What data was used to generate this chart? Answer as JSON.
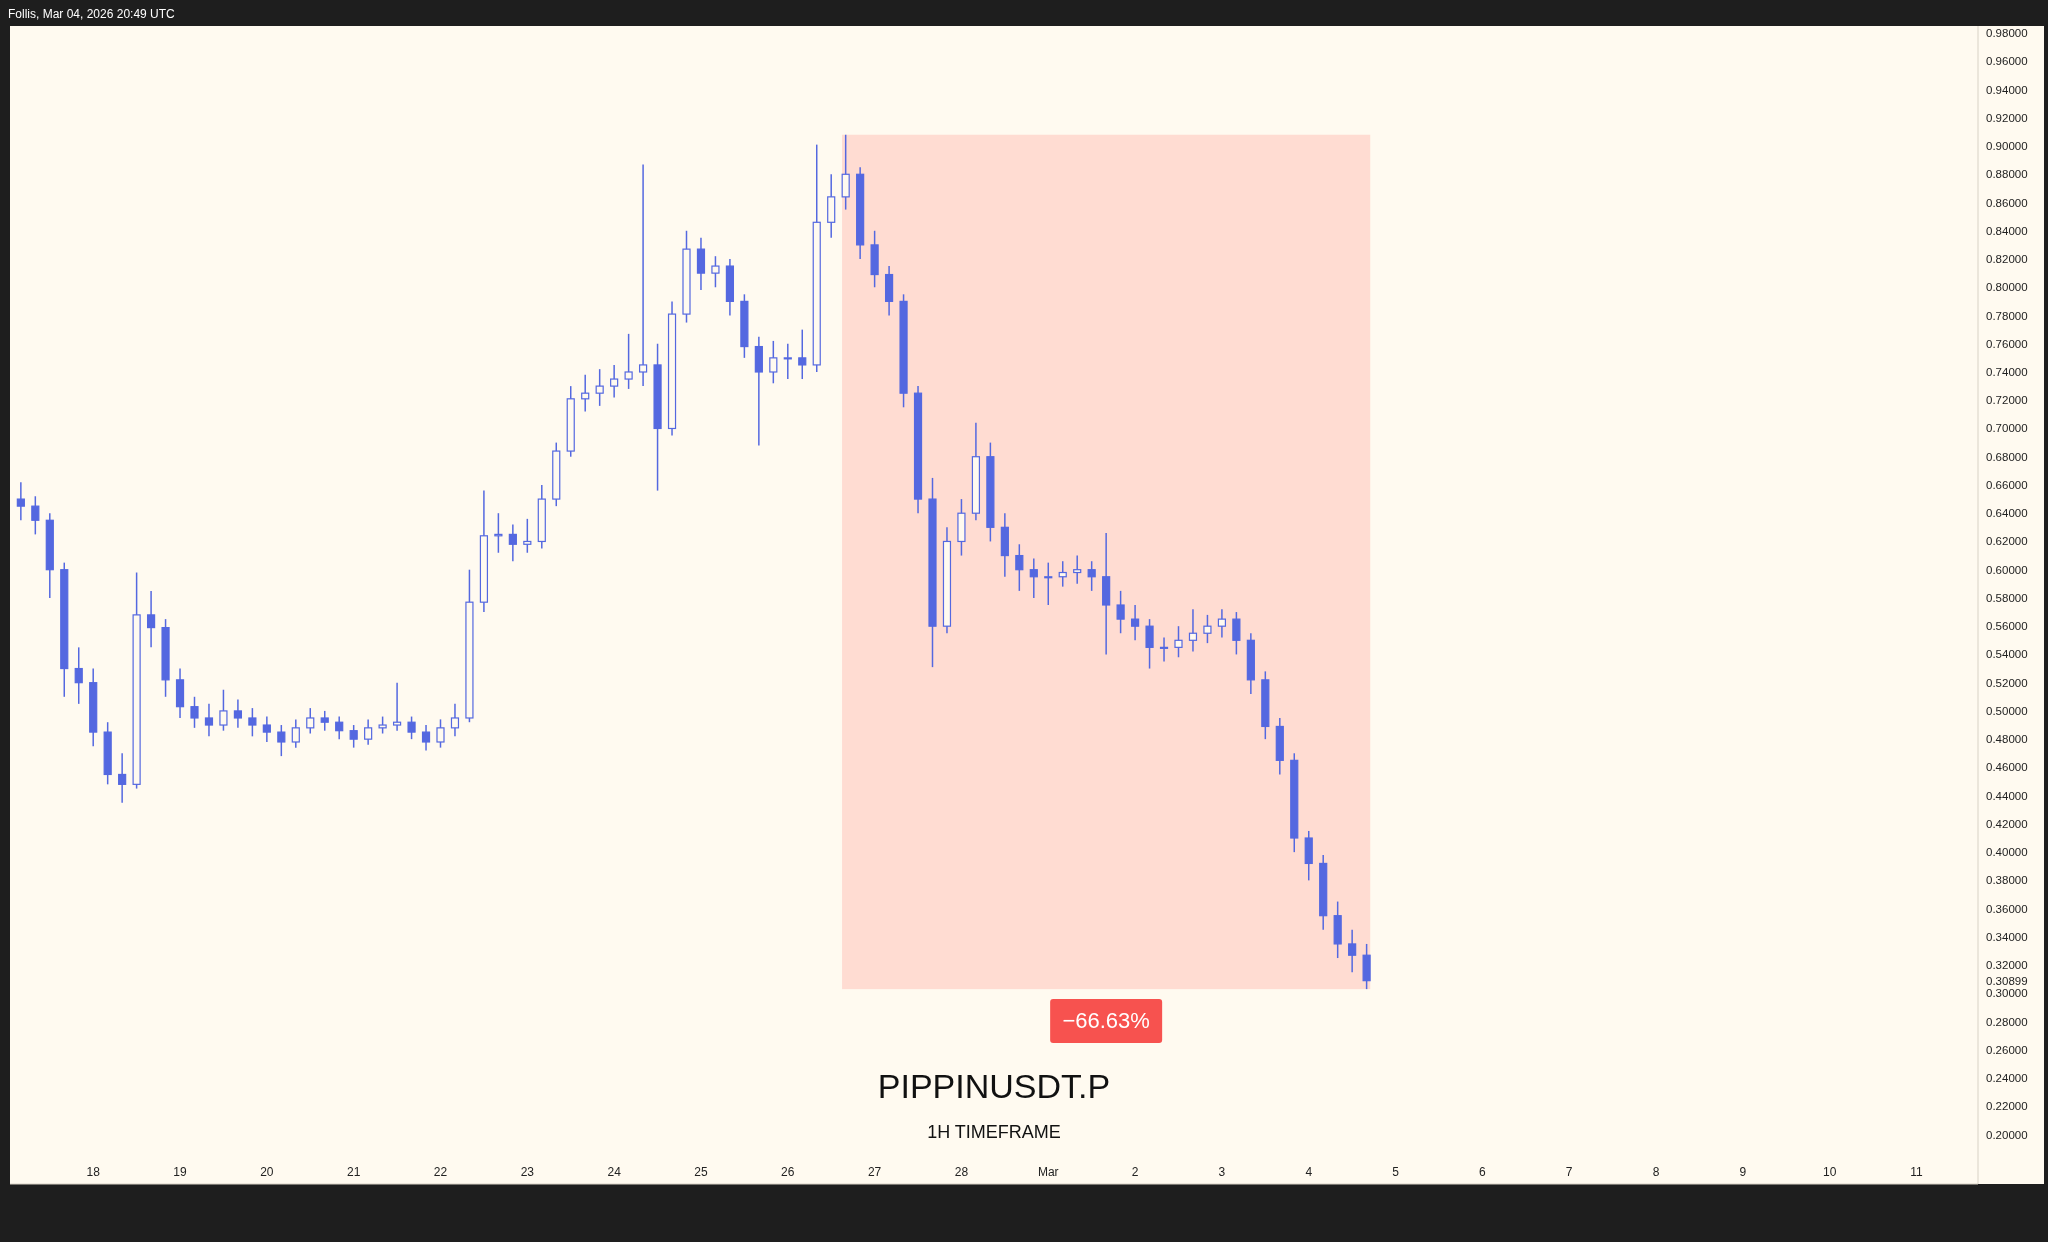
{
  "chart_data": {
    "type": "candlestick",
    "title": "PIPPINUSDT.P",
    "subtitle": "1H TIMEFRAME",
    "annotations": [
      "Follis, Mar 04, 2026 20:49 UTC"
    ],
    "xlim": [
      "2026-02-17T01:00",
      "2026-03-11T17:00"
    ],
    "xticks": [
      {
        "value": "2026-02-18",
        "label": "18"
      },
      {
        "value": "2026-02-19",
        "label": "19"
      },
      {
        "value": "2026-02-20",
        "label": "20"
      },
      {
        "value": "2026-02-21",
        "label": "21"
      },
      {
        "value": "2026-02-22",
        "label": "22"
      },
      {
        "value": "2026-02-23",
        "label": "23"
      },
      {
        "value": "2026-02-24",
        "label": "24"
      },
      {
        "value": "2026-02-25",
        "label": "25"
      },
      {
        "value": "2026-02-26",
        "label": "26"
      },
      {
        "value": "2026-02-27",
        "label": "27"
      },
      {
        "value": "2026-02-28",
        "label": "28"
      },
      {
        "value": "2026-03-01",
        "label": "Mar"
      },
      {
        "value": "2026-03-02",
        "label": "2"
      },
      {
        "value": "2026-03-03",
        "label": "3"
      },
      {
        "value": "2026-03-04",
        "label": "4"
      },
      {
        "value": "2026-03-05",
        "label": "5"
      },
      {
        "value": "2026-03-06",
        "label": "6"
      },
      {
        "value": "2026-03-07",
        "label": "7"
      },
      {
        "value": "2026-03-08",
        "label": "8"
      },
      {
        "value": "2026-03-09",
        "label": "9"
      },
      {
        "value": "2026-03-10",
        "label": "10"
      },
      {
        "value": "2026-03-11",
        "label": "11"
      }
    ],
    "ylim": [
      0.165,
      0.985
    ],
    "yticks": [
      {
        "value": 0.2,
        "label": "0.20000"
      },
      {
        "value": 0.22,
        "label": "0.22000"
      },
      {
        "value": 0.24,
        "label": "0.24000"
      },
      {
        "value": 0.26,
        "label": "0.26000"
      },
      {
        "value": 0.28,
        "label": "0.28000"
      },
      {
        "value": 0.3,
        "label": "0.30000"
      },
      {
        "value": 0.30899,
        "label": "0.30899"
      },
      {
        "value": 0.32,
        "label": "0.32000"
      },
      {
        "value": 0.34,
        "label": "0.34000"
      },
      {
        "value": 0.36,
        "label": "0.36000"
      },
      {
        "value": 0.38,
        "label": "0.38000"
      },
      {
        "value": 0.4,
        "label": "0.40000"
      },
      {
        "value": 0.42,
        "label": "0.42000"
      },
      {
        "value": 0.44,
        "label": "0.44000"
      },
      {
        "value": 0.46,
        "label": "0.46000"
      },
      {
        "value": 0.48,
        "label": "0.48000"
      },
      {
        "value": 0.5,
        "label": "0.50000"
      },
      {
        "value": 0.52,
        "label": "0.52000"
      },
      {
        "value": 0.54,
        "label": "0.54000"
      },
      {
        "value": 0.56,
        "label": "0.56000"
      },
      {
        "value": 0.58,
        "label": "0.58000"
      },
      {
        "value": 0.6,
        "label": "0.60000"
      },
      {
        "value": 0.62,
        "label": "0.62000"
      },
      {
        "value": 0.64,
        "label": "0.64000"
      },
      {
        "value": 0.66,
        "label": "0.66000"
      },
      {
        "value": 0.68,
        "label": "0.68000"
      },
      {
        "value": 0.7,
        "label": "0.70000"
      },
      {
        "value": 0.72,
        "label": "0.72000"
      },
      {
        "value": 0.74,
        "label": "0.74000"
      },
      {
        "value": 0.76,
        "label": "0.76000"
      },
      {
        "value": 0.78,
        "label": "0.78000"
      },
      {
        "value": 0.8,
        "label": "0.80000"
      },
      {
        "value": 0.82,
        "label": "0.82000"
      },
      {
        "value": 0.84,
        "label": "0.84000"
      },
      {
        "value": 0.86,
        "label": "0.86000"
      },
      {
        "value": 0.88,
        "label": "0.88000"
      },
      {
        "value": 0.9,
        "label": "0.90000"
      },
      {
        "value": 0.92,
        "label": "0.92000"
      },
      {
        "value": 0.94,
        "label": "0.94000"
      },
      {
        "value": 0.96,
        "label": "0.96000"
      },
      {
        "value": 0.98,
        "label": "0.98000"
      }
    ],
    "bands": [
      {
        "axis": "x",
        "from": "2026-02-26T15:00",
        "to": "2026-03-04T17:00",
        "label": "−66.63%",
        "color": "#ffdcd2"
      }
    ],
    "grid": false,
    "series": [
      {
        "color": "#5468e0",
        "x": [
          "2026-02-17T04:00",
          "2026-02-17T08:00",
          "2026-02-17T12:00",
          "2026-02-17T16:00",
          "2026-02-17T20:00",
          "2026-02-18T00:00",
          "2026-02-18T04:00",
          "2026-02-18T08:00",
          "2026-02-18T12:00",
          "2026-02-18T16:00",
          "2026-02-18T20:00",
          "2026-02-19T00:00",
          "2026-02-19T04:00",
          "2026-02-19T08:00",
          "2026-02-19T12:00",
          "2026-02-19T16:00",
          "2026-02-19T20:00",
          "2026-02-20T00:00",
          "2026-02-20T04:00",
          "2026-02-20T08:00",
          "2026-02-20T12:00",
          "2026-02-20T16:00",
          "2026-02-20T20:00",
          "2026-02-21T00:00",
          "2026-02-21T04:00",
          "2026-02-21T08:00",
          "2026-02-21T12:00",
          "2026-02-21T16:00",
          "2026-02-21T20:00",
          "2026-02-22T00:00",
          "2026-02-22T04:00",
          "2026-02-22T08:00",
          "2026-02-22T12:00",
          "2026-02-22T16:00",
          "2026-02-22T20:00",
          "2026-02-23T00:00",
          "2026-02-23T04:00",
          "2026-02-23T08:00",
          "2026-02-23T12:00",
          "2026-02-23T16:00",
          "2026-02-23T20:00",
          "2026-02-24T00:00",
          "2026-02-24T04:00",
          "2026-02-24T08:00",
          "2026-02-24T12:00",
          "2026-02-24T16:00",
          "2026-02-24T20:00",
          "2026-02-25T00:00",
          "2026-02-25T04:00",
          "2026-02-25T08:00",
          "2026-02-25T12:00",
          "2026-02-25T16:00",
          "2026-02-25T20:00",
          "2026-02-26T00:00",
          "2026-02-26T04:00",
          "2026-02-26T08:00",
          "2026-02-26T12:00",
          "2026-02-26T16:00",
          "2026-02-26T20:00",
          "2026-02-27T00:00",
          "2026-02-27T04:00",
          "2026-02-27T08:00",
          "2026-02-27T12:00",
          "2026-02-27T16:00",
          "2026-02-27T20:00",
          "2026-02-28T00:00",
          "2026-02-28T04:00",
          "2026-02-28T08:00",
          "2026-02-28T12:00",
          "2026-02-28T16:00",
          "2026-02-28T20:00",
          "2026-03-01T00:00",
          "2026-03-01T04:00",
          "2026-03-01T08:00",
          "2026-03-01T12:00",
          "2026-03-01T16:00",
          "2026-03-01T20:00",
          "2026-03-02T00:00",
          "2026-03-02T04:00",
          "2026-03-02T08:00",
          "2026-03-02T12:00",
          "2026-03-02T16:00",
          "2026-03-02T20:00",
          "2026-03-03T00:00",
          "2026-03-03T04:00",
          "2026-03-03T08:00",
          "2026-03-03T12:00",
          "2026-03-03T16:00",
          "2026-03-03T20:00",
          "2026-03-04T00:00",
          "2026-03-04T04:00",
          "2026-03-04T08:00",
          "2026-03-04T12:00",
          "2026-03-04T16:00"
        ],
        "ohlc": [
          [
            0.65,
            0.662,
            0.635,
            0.645
          ],
          [
            0.645,
            0.652,
            0.625,
            0.635
          ],
          [
            0.635,
            0.64,
            0.58,
            0.6
          ],
          [
            0.6,
            0.605,
            0.51,
            0.53
          ],
          [
            0.53,
            0.545,
            0.505,
            0.52
          ],
          [
            0.52,
            0.53,
            0.475,
            0.485
          ],
          [
            0.485,
            0.492,
            0.448,
            0.455
          ],
          [
            0.455,
            0.47,
            0.435,
            0.448
          ],
          [
            0.448,
            0.598,
            0.445,
            0.568
          ],
          [
            0.568,
            0.585,
            0.545,
            0.559
          ],
          [
            0.559,
            0.565,
            0.51,
            0.522
          ],
          [
            0.522,
            0.53,
            0.495,
            0.503
          ],
          [
            0.503,
            0.51,
            0.488,
            0.495
          ],
          [
            0.495,
            0.505,
            0.482,
            0.49
          ],
          [
            0.49,
            0.515,
            0.486,
            0.5
          ],
          [
            0.5,
            0.508,
            0.488,
            0.495
          ],
          [
            0.495,
            0.502,
            0.482,
            0.49
          ],
          [
            0.49,
            0.496,
            0.478,
            0.485
          ],
          [
            0.485,
            0.49,
            0.468,
            0.478
          ],
          [
            0.478,
            0.494,
            0.474,
            0.488
          ],
          [
            0.488,
            0.502,
            0.484,
            0.495
          ],
          [
            0.495,
            0.5,
            0.486,
            0.492
          ],
          [
            0.492,
            0.496,
            0.48,
            0.486
          ],
          [
            0.486,
            0.49,
            0.474,
            0.48
          ],
          [
            0.48,
            0.494,
            0.476,
            0.488
          ],
          [
            0.488,
            0.496,
            0.484,
            0.49
          ],
          [
            0.49,
            0.52,
            0.486,
            0.492
          ],
          [
            0.492,
            0.496,
            0.48,
            0.485
          ],
          [
            0.485,
            0.49,
            0.472,
            0.478
          ],
          [
            0.478,
            0.494,
            0.474,
            0.488
          ],
          [
            0.488,
            0.505,
            0.482,
            0.495
          ],
          [
            0.495,
            0.6,
            0.492,
            0.577
          ],
          [
            0.577,
            0.656,
            0.57,
            0.624
          ],
          [
            0.624,
            0.64,
            0.612,
            0.625
          ],
          [
            0.625,
            0.632,
            0.606,
            0.618
          ],
          [
            0.618,
            0.636,
            0.612,
            0.62
          ],
          [
            0.62,
            0.66,
            0.615,
            0.65
          ],
          [
            0.65,
            0.69,
            0.645,
            0.684
          ],
          [
            0.684,
            0.73,
            0.68,
            0.721
          ],
          [
            0.721,
            0.738,
            0.712,
            0.725
          ],
          [
            0.725,
            0.742,
            0.716,
            0.73
          ],
          [
            0.73,
            0.745,
            0.722,
            0.735
          ],
          [
            0.735,
            0.767,
            0.728,
            0.74
          ],
          [
            0.74,
            0.887,
            0.73,
            0.745
          ],
          [
            0.745,
            0.76,
            0.656,
            0.7
          ],
          [
            0.7,
            0.79,
            0.695,
            0.781
          ],
          [
            0.781,
            0.84,
            0.775,
            0.827
          ],
          [
            0.827,
            0.835,
            0.798,
            0.81
          ],
          [
            0.81,
            0.822,
            0.8,
            0.815
          ],
          [
            0.815,
            0.82,
            0.78,
            0.79
          ],
          [
            0.79,
            0.795,
            0.75,
            0.758
          ],
          [
            0.758,
            0.765,
            0.688,
            0.74
          ],
          [
            0.74,
            0.762,
            0.732,
            0.75
          ],
          [
            0.75,
            0.76,
            0.735,
            0.75
          ],
          [
            0.75,
            0.77,
            0.735,
            0.745
          ],
          [
            0.745,
            0.901,
            0.74,
            0.846
          ],
          [
            0.846,
            0.88,
            0.835,
            0.864
          ],
          [
            0.864,
            0.908,
            0.855,
            0.88
          ],
          [
            0.88,
            0.885,
            0.82,
            0.83
          ],
          [
            0.83,
            0.84,
            0.8,
            0.809
          ],
          [
            0.809,
            0.815,
            0.78,
            0.79
          ],
          [
            0.79,
            0.795,
            0.715,
            0.725
          ],
          [
            0.725,
            0.73,
            0.64,
            0.65
          ],
          [
            0.65,
            0.665,
            0.531,
            0.56
          ],
          [
            0.56,
            0.63,
            0.555,
            0.62
          ],
          [
            0.62,
            0.65,
            0.61,
            0.64
          ],
          [
            0.64,
            0.704,
            0.635,
            0.68
          ],
          [
            0.68,
            0.69,
            0.62,
            0.63
          ],
          [
            0.63,
            0.64,
            0.595,
            0.61
          ],
          [
            0.61,
            0.618,
            0.585,
            0.6
          ],
          [
            0.6,
            0.608,
            0.58,
            0.595
          ],
          [
            0.595,
            0.605,
            0.575,
            0.595
          ],
          [
            0.595,
            0.606,
            0.588,
            0.598
          ],
          [
            0.598,
            0.61,
            0.59,
            0.6
          ],
          [
            0.6,
            0.606,
            0.585,
            0.595
          ],
          [
            0.595,
            0.626,
            0.54,
            0.575
          ],
          [
            0.575,
            0.585,
            0.555,
            0.565
          ],
          [
            0.565,
            0.575,
            0.55,
            0.56
          ],
          [
            0.56,
            0.565,
            0.53,
            0.545
          ],
          [
            0.545,
            0.552,
            0.535,
            0.545
          ],
          [
            0.545,
            0.56,
            0.538,
            0.55
          ],
          [
            0.55,
            0.572,
            0.542,
            0.555
          ],
          [
            0.555,
            0.568,
            0.548,
            0.56
          ],
          [
            0.56,
            0.572,
            0.552,
            0.565
          ],
          [
            0.565,
            0.57,
            0.54,
            0.55
          ],
          [
            0.55,
            0.555,
            0.512,
            0.522
          ],
          [
            0.522,
            0.528,
            0.48,
            0.489
          ],
          [
            0.489,
            0.495,
            0.455,
            0.465
          ],
          [
            0.465,
            0.47,
            0.4,
            0.41
          ],
          [
            0.41,
            0.415,
            0.38,
            0.392
          ],
          [
            0.392,
            0.398,
            0.345,
            0.355
          ],
          [
            0.355,
            0.365,
            0.325,
            0.335
          ],
          [
            0.335,
            0.345,
            0.315,
            0.327
          ],
          [
            0.327,
            0.335,
            0.303,
            0.30899
          ]
        ]
      }
    ]
  }
}
